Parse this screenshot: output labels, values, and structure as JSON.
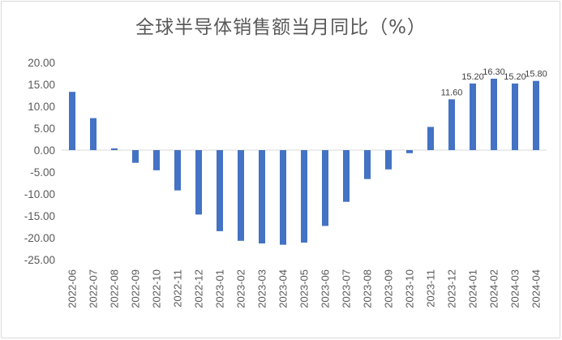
{
  "chart_data": {
    "type": "bar",
    "title": "全球半导体销售额当月同比（%）",
    "xlabel": "",
    "ylabel": "",
    "ylim": [
      -25,
      20
    ],
    "yticks": [
      "20.00",
      "15.00",
      "10.00",
      "5.00",
      "0.00",
      "-5.00",
      "-10.00",
      "-15.00",
      "-20.00",
      "-25.00"
    ],
    "grid": false,
    "bar_color": "#4472c4",
    "categories": [
      "2022-06",
      "2022-07",
      "2022-08",
      "2022-09",
      "2022-10",
      "2022-11",
      "2022-12",
      "2023-01",
      "2023-02",
      "2023-03",
      "2023-04",
      "2023-05",
      "2023-06",
      "2023-07",
      "2023-08",
      "2023-09",
      "2023-10",
      "2023-11",
      "2023-12",
      "2024-01",
      "2024-02",
      "2024-03",
      "2024-04"
    ],
    "values": [
      13.3,
      7.3,
      0.4,
      -2.9,
      -4.6,
      -9.2,
      -14.7,
      -18.5,
      -20.7,
      -21.3,
      -21.6,
      -21.1,
      -17.3,
      -11.8,
      -6.6,
      -4.4,
      -0.7,
      5.3,
      11.6,
      15.2,
      16.3,
      15.2,
      15.8
    ],
    "data_labels": [
      "",
      "",
      "",
      "",
      "",
      "",
      "",
      "",
      "",
      "",
      "",
      "",
      "",
      "",
      "",
      "",
      "",
      "",
      "11.60",
      "15.20",
      "16.30",
      "15.20",
      "15.80"
    ]
  }
}
